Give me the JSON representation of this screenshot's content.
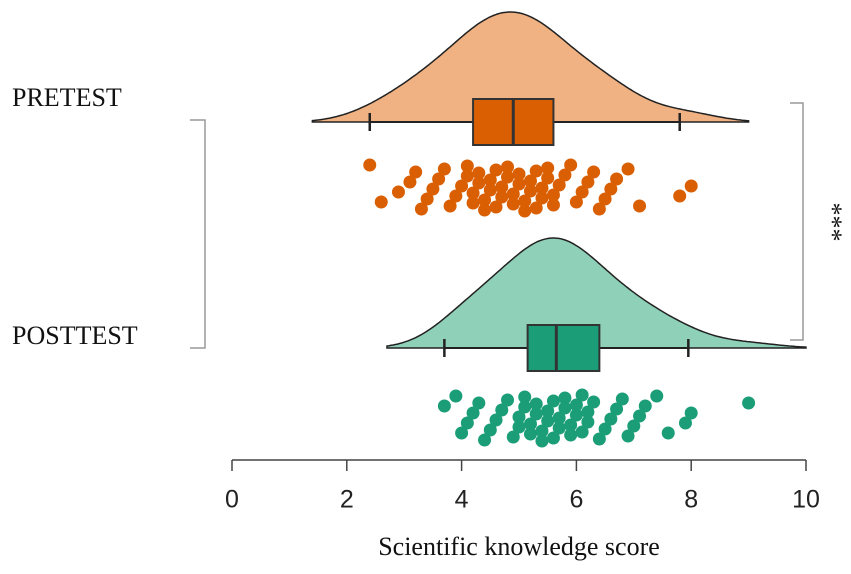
{
  "chart_data": {
    "type": "raincloud",
    "x_label": "Scientific knowledge score",
    "xlim": [
      0,
      10
    ],
    "xticks": [
      0,
      2,
      4,
      6,
      8,
      10
    ],
    "annotation": "***",
    "groups": [
      {
        "name": "PRETEST",
        "color": "#d95f02",
        "density_color": "#f0b283",
        "whisker_low": 2.4,
        "q1": 4.2,
        "median": 4.9,
        "q3": 5.6,
        "whisker_high": 7.8,
        "points": [
          2.4,
          2.6,
          2.9,
          3.1,
          3.2,
          3.3,
          3.4,
          3.5,
          3.6,
          3.7,
          3.8,
          3.9,
          4.0,
          4.1,
          4.1,
          4.2,
          4.2,
          4.3,
          4.3,
          4.4,
          4.4,
          4.5,
          4.5,
          4.6,
          4.6,
          4.7,
          4.7,
          4.8,
          4.8,
          4.9,
          4.9,
          5.0,
          5.0,
          5.1,
          5.1,
          5.2,
          5.2,
          5.3,
          5.3,
          5.4,
          5.4,
          5.5,
          5.5,
          5.6,
          5.6,
          5.7,
          5.8,
          5.9,
          6.0,
          6.1,
          6.2,
          6.3,
          6.4,
          6.5,
          6.6,
          6.7,
          6.9,
          7.1,
          7.8,
          8.0
        ]
      },
      {
        "name": "POSTTEST",
        "color": "#1b9e77",
        "density_color": "#8fd0b8",
        "whisker_low": 3.7,
        "q1": 5.15,
        "median": 5.65,
        "q3": 6.4,
        "whisker_high": 7.95,
        "points": [
          3.7,
          3.9,
          4.0,
          4.1,
          4.2,
          4.3,
          4.4,
          4.5,
          4.6,
          4.7,
          4.8,
          4.9,
          5.0,
          5.0,
          5.1,
          5.1,
          5.2,
          5.2,
          5.3,
          5.3,
          5.4,
          5.4,
          5.5,
          5.5,
          5.6,
          5.6,
          5.7,
          5.7,
          5.8,
          5.8,
          5.9,
          5.9,
          6.0,
          6.0,
          6.1,
          6.1,
          6.2,
          6.2,
          6.3,
          6.4,
          6.5,
          6.6,
          6.7,
          6.8,
          6.9,
          7.0,
          7.1,
          7.2,
          7.4,
          7.6,
          7.9,
          8.0,
          9.0
        ]
      }
    ]
  }
}
